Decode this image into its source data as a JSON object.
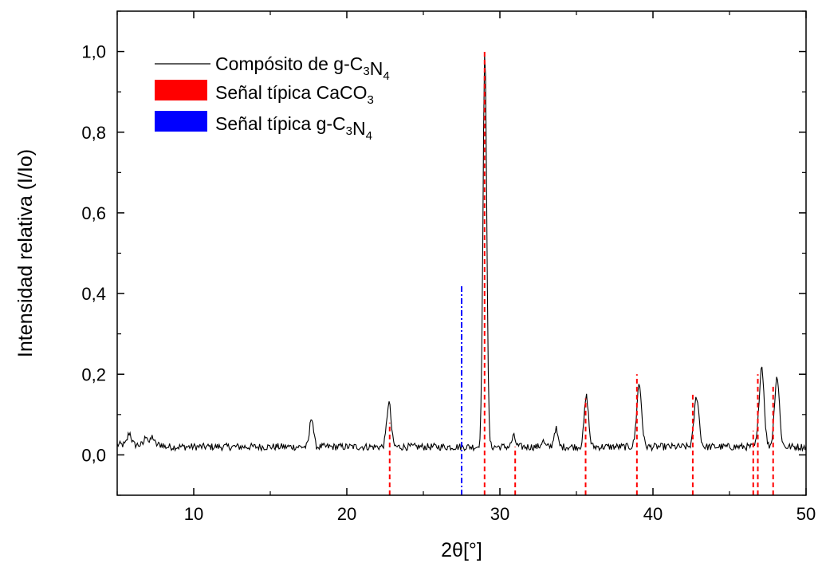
{
  "chart_data": {
    "type": "line",
    "xlabel": "2θ[°]",
    "ylabel": "Intensidad relativa (I/Io)",
    "xlim": [
      5,
      50
    ],
    "ylim": [
      -0.1,
      1.1
    ],
    "x_ticks": [
      {
        "value": 10,
        "label": "10"
      },
      {
        "value": 20,
        "label": "20"
      },
      {
        "value": 30,
        "label": "30"
      },
      {
        "value": 40,
        "label": "40"
      },
      {
        "value": 50,
        "label": "50"
      }
    ],
    "y_ticks": [
      {
        "value": 0.0,
        "label": "0,0"
      },
      {
        "value": 0.2,
        "label": "0,2"
      },
      {
        "value": 0.4,
        "label": "0,4"
      },
      {
        "value": 0.6,
        "label": "0,6"
      },
      {
        "value": 0.8,
        "label": "0,8"
      },
      {
        "value": 1.0,
        "label": "1,0"
      }
    ],
    "grid": false,
    "legend_position": "top-left",
    "series": [
      {
        "name": "Compósito de g-C3N4",
        "legend_parts": [
          {
            "t": "Compósito de g-C"
          },
          {
            "t": "3",
            "sub": true
          },
          {
            "t": "N"
          },
          {
            "t": "4",
            "sub": true
          }
        ],
        "style": "solid",
        "color": "#000000",
        "peaks": [
          {
            "x": 5.8,
            "h": 0.03,
            "w": 0.12
          },
          {
            "x": 6.9,
            "h": 0.025,
            "w": 0.1
          },
          {
            "x": 7.3,
            "h": 0.02,
            "w": 0.1
          },
          {
            "x": 17.7,
            "h": 0.075,
            "w": 0.12
          },
          {
            "x": 22.75,
            "h": 0.11,
            "w": 0.14
          },
          {
            "x": 29.02,
            "h": 0.98,
            "w": 0.12
          },
          {
            "x": 30.9,
            "h": 0.025,
            "w": 0.12
          },
          {
            "x": 32.8,
            "h": 0.015,
            "w": 0.1
          },
          {
            "x": 33.65,
            "h": 0.045,
            "w": 0.12
          },
          {
            "x": 35.65,
            "h": 0.125,
            "w": 0.14
          },
          {
            "x": 39.1,
            "h": 0.155,
            "w": 0.16
          },
          {
            "x": 42.85,
            "h": 0.125,
            "w": 0.16
          },
          {
            "x": 47.1,
            "h": 0.2,
            "w": 0.16
          },
          {
            "x": 48.1,
            "h": 0.175,
            "w": 0.16
          }
        ]
      },
      {
        "name": "Señal típica CaCO3",
        "legend_parts": [
          {
            "t": "Señal típica CaCO"
          },
          {
            "t": "3",
            "sub": true
          }
        ],
        "style": "dashed",
        "color": "#ff0000",
        "lines": [
          {
            "x": 22.8,
            "ymax": 0.08
          },
          {
            "x": 29.0,
            "ymax": 1.0
          },
          {
            "x": 31.0,
            "ymax": 0.02
          },
          {
            "x": 35.6,
            "ymax": 0.14
          },
          {
            "x": 38.95,
            "ymax": 0.2
          },
          {
            "x": 42.6,
            "ymax": 0.15
          },
          {
            "x": 46.55,
            "ymax": 0.06
          },
          {
            "x": 46.85,
            "ymax": 0.2
          },
          {
            "x": 47.85,
            "ymax": 0.17
          }
        ]
      },
      {
        "name": "Señal típica g-C3N4",
        "legend_parts": [
          {
            "t": "Señal típica g-C"
          },
          {
            "t": "3",
            "sub": true
          },
          {
            "t": "N"
          },
          {
            "t": "4",
            "sub": true
          }
        ],
        "style": "dash-dot",
        "color": "#0000ff",
        "lines": [
          {
            "x": 27.5,
            "ymax": 0.42
          }
        ]
      }
    ]
  }
}
